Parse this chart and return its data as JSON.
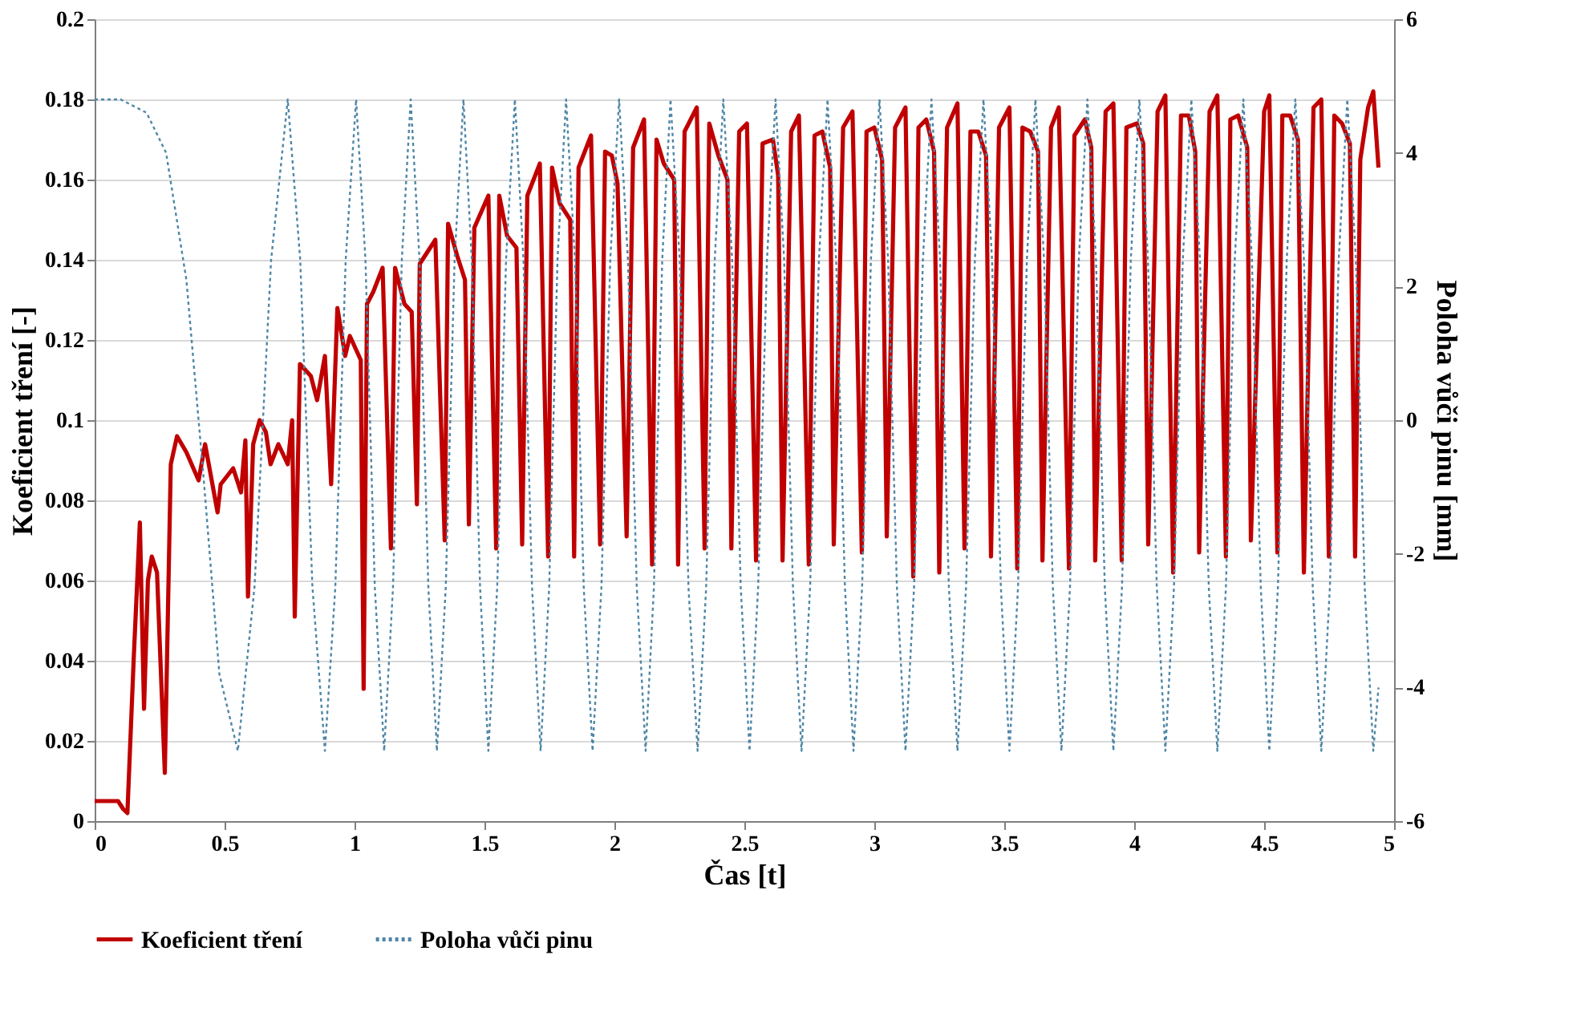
{
  "chart_data": {
    "type": "line",
    "xlabel": "Čas [t]",
    "ylabel": "Koeficient tření [-]",
    "y2label": "Poloha vůči pinu [mm]",
    "xlim": [
      0,
      5
    ],
    "xticks": [
      0,
      0.5,
      1,
      1.5,
      2,
      2.5,
      3,
      3.5,
      4,
      4.5,
      5
    ],
    "ylim": [
      0,
      0.2
    ],
    "yticks": [
      0,
      0.02,
      0.04,
      0.06,
      0.08,
      0.1,
      0.12,
      0.14,
      0.16,
      0.18,
      0.2
    ],
    "y2lim": [
      -6,
      6
    ],
    "y2ticks": [
      -6,
      -4,
      -2,
      0,
      2,
      4,
      6
    ],
    "grid": "y",
    "legend": "bottom",
    "series": [
      {
        "name": "Koeficient tření",
        "color": "#c00000",
        "line_style": "solid",
        "x": [
          0,
          0.05,
          0.09,
          0.11,
          0.126,
          0.15,
          0.174,
          0.19,
          0.205,
          0.22,
          0.24,
          0.27,
          0.293,
          0.317,
          0.353,
          0.4,
          0.425,
          0.473,
          0.485,
          0.533,
          0.563,
          0.58,
          0.59,
          0.61,
          0.635,
          0.659,
          0.677,
          0.707,
          0.743,
          0.76,
          0.77,
          0.79,
          0.832,
          0.856,
          0.886,
          0.91,
          0.934,
          0.964,
          0.982,
          1.024,
          1.035,
          1.048,
          1.072,
          1.108,
          1.14,
          1.156,
          1.192,
          1.22,
          1.24,
          1.251,
          1.311,
          1.347,
          1.36,
          1.395,
          1.425,
          1.44,
          1.461,
          1.515,
          1.545,
          1.557,
          1.587,
          1.623,
          1.645,
          1.665,
          1.713,
          1.745,
          1.76,
          1.79,
          1.83,
          1.845,
          1.862,
          1.91,
          1.945,
          1.964,
          1.99,
          2.012,
          2.047,
          2.072,
          2.114,
          2.145,
          2.162,
          2.19,
          2.23,
          2.245,
          2.27,
          2.317,
          2.347,
          2.365,
          2.4,
          2.435,
          2.45,
          2.48,
          2.51,
          2.545,
          2.57,
          2.61,
          2.63,
          2.647,
          2.68,
          2.71,
          2.748,
          2.77,
          2.8,
          2.83,
          2.844,
          2.88,
          2.916,
          2.952,
          2.97,
          3.0,
          3.03,
          3.048,
          3.08,
          3.12,
          3.15,
          3.17,
          3.2,
          3.23,
          3.25,
          3.28,
          3.32,
          3.347,
          3.37,
          3.4,
          3.43,
          3.449,
          3.48,
          3.52,
          3.55,
          3.57,
          3.6,
          3.63,
          3.647,
          3.68,
          3.71,
          3.749,
          3.77,
          3.81,
          3.835,
          3.85,
          3.89,
          3.92,
          3.952,
          3.97,
          4.01,
          4.035,
          4.054,
          4.09,
          4.12,
          4.15,
          4.18,
          4.21,
          4.235,
          4.25,
          4.29,
          4.32,
          4.353,
          4.37,
          4.4,
          4.435,
          4.449,
          4.5,
          4.52,
          4.551,
          4.57,
          4.6,
          4.63,
          4.653,
          4.69,
          4.72,
          4.749,
          4.77,
          4.8,
          4.83,
          4.85,
          4.87,
          4.9,
          4.92,
          4.94
        ],
        "values": [
          0.005,
          0.005,
          0.005,
          0.003,
          0.002,
          0.04,
          0.0745,
          0.028,
          0.06,
          0.066,
          0.062,
          0.012,
          0.089,
          0.096,
          0.092,
          0.085,
          0.094,
          0.077,
          0.084,
          0.088,
          0.082,
          0.095,
          0.056,
          0.094,
          0.1,
          0.097,
          0.089,
          0.094,
          0.089,
          0.1,
          0.051,
          0.114,
          0.111,
          0.105,
          0.116,
          0.084,
          0.128,
          0.116,
          0.121,
          0.115,
          0.033,
          0.129,
          0.132,
          0.138,
          0.068,
          0.138,
          0.129,
          0.127,
          0.079,
          0.139,
          0.145,
          0.07,
          0.149,
          0.141,
          0.135,
          0.074,
          0.148,
          0.156,
          0.068,
          0.156,
          0.146,
          0.143,
          0.069,
          0.156,
          0.164,
          0.066,
          0.163,
          0.154,
          0.15,
          0.066,
          0.163,
          0.171,
          0.069,
          0.167,
          0.166,
          0.159,
          0.071,
          0.168,
          0.175,
          0.064,
          0.17,
          0.164,
          0.16,
          0.064,
          0.172,
          0.178,
          0.068,
          0.174,
          0.166,
          0.16,
          0.068,
          0.172,
          0.174,
          0.065,
          0.169,
          0.17,
          0.161,
          0.065,
          0.172,
          0.176,
          0.064,
          0.171,
          0.172,
          0.163,
          0.069,
          0.173,
          0.177,
          0.067,
          0.172,
          0.173,
          0.165,
          0.071,
          0.173,
          0.178,
          0.061,
          0.173,
          0.175,
          0.167,
          0.062,
          0.173,
          0.179,
          0.068,
          0.172,
          0.172,
          0.166,
          0.066,
          0.173,
          0.178,
          0.063,
          0.173,
          0.172,
          0.167,
          0.065,
          0.173,
          0.178,
          0.063,
          0.171,
          0.175,
          0.168,
          0.065,
          0.177,
          0.179,
          0.065,
          0.173,
          0.174,
          0.169,
          0.069,
          0.177,
          0.181,
          0.062,
          0.176,
          0.176,
          0.167,
          0.067,
          0.177,
          0.181,
          0.066,
          0.175,
          0.176,
          0.168,
          0.07,
          0.177,
          0.181,
          0.067,
          0.176,
          0.176,
          0.17,
          0.062,
          0.178,
          0.18,
          0.066,
          0.176,
          0.174,
          0.169,
          0.066,
          0.165,
          0.178,
          0.182,
          0.163
        ]
      },
      {
        "name": "Poloha vůči pinu",
        "color": "#4f86a6",
        "line_style": "dotted",
        "axis": "y2",
        "x": [
          0,
          0.1,
          0.2,
          0.275,
          0.353,
          0.42,
          0.48,
          0.551,
          0.615,
          0.679,
          0.743,
          0.791,
          0.838,
          0.886,
          0.926,
          0.966,
          1.006,
          1.042,
          1.078,
          1.114,
          1.148,
          1.182,
          1.216,
          1.25,
          1.284,
          1.317,
          1.351,
          1.385,
          1.419,
          1.451,
          1.483,
          1.515,
          1.549,
          1.583,
          1.617,
          1.65,
          1.683,
          1.716,
          1.749,
          1.781,
          1.814,
          1.848,
          1.882,
          1.916,
          1.95,
          1.984,
          2.018,
          2.052,
          2.086,
          2.12,
          2.152,
          2.184,
          2.216,
          2.251,
          2.285,
          2.32,
          2.353,
          2.386,
          2.419,
          2.453,
          2.486,
          2.52,
          2.553,
          2.587,
          2.62,
          2.653,
          2.687,
          2.72,
          2.753,
          2.787,
          2.82,
          2.853,
          2.887,
          2.92,
          2.953,
          2.987,
          3.02,
          3.053,
          3.087,
          3.12,
          3.153,
          3.187,
          3.22,
          3.253,
          3.287,
          3.32,
          3.353,
          3.387,
          3.42,
          3.453,
          3.487,
          3.52,
          3.553,
          3.587,
          3.62,
          3.653,
          3.687,
          3.72,
          3.753,
          3.787,
          3.82,
          3.853,
          3.887,
          3.92,
          3.953,
          3.987,
          4.02,
          4.053,
          4.087,
          4.12,
          4.153,
          4.187,
          4.22,
          4.253,
          4.287,
          4.32,
          4.353,
          4.387,
          4.42,
          4.453,
          4.487,
          4.52,
          4.553,
          4.587,
          4.62,
          4.653,
          4.687,
          4.72,
          4.753,
          4.787,
          4.82,
          4.853,
          4.887,
          4.92,
          4.94
        ],
        "values": [
          4.8,
          4.8,
          4.6,
          4.0,
          2.1,
          -0.9,
          -3.8,
          -4.95,
          -2.5,
          2.4,
          4.8,
          2.4,
          -2.5,
          -4.95,
          -2.5,
          2.4,
          4.8,
          2.4,
          -2.5,
          -4.95,
          -2.5,
          2.4,
          4.8,
          2.4,
          -2.5,
          -4.95,
          -2.5,
          2.4,
          4.8,
          2.4,
          -2.5,
          -4.95,
          -2.5,
          2.4,
          4.8,
          2.4,
          -2.5,
          -4.95,
          -2.5,
          2.4,
          4.8,
          2.4,
          -2.5,
          -4.95,
          -2.5,
          2.4,
          4.8,
          2.4,
          -2.5,
          -4.95,
          -2.5,
          2.4,
          4.8,
          2.4,
          -2.5,
          -4.95,
          -2.5,
          2.4,
          4.8,
          2.4,
          -2.5,
          -4.95,
          -2.5,
          2.4,
          4.8,
          2.4,
          -2.5,
          -4.95,
          -2.5,
          2.4,
          4.8,
          2.4,
          -2.5,
          -4.95,
          -2.5,
          2.4,
          4.8,
          2.4,
          -2.5,
          -4.95,
          -2.5,
          2.4,
          4.8,
          2.4,
          -2.5,
          -4.95,
          -2.5,
          2.4,
          4.8,
          2.4,
          -2.5,
          -4.95,
          -2.5,
          2.4,
          4.8,
          2.4,
          -2.5,
          -4.95,
          -2.5,
          2.4,
          4.8,
          2.4,
          -2.5,
          -4.95,
          -2.5,
          2.4,
          4.8,
          2.4,
          -2.5,
          -4.95,
          -2.5,
          2.4,
          4.8,
          2.4,
          -2.5,
          -4.95,
          -2.5,
          2.4,
          4.8,
          2.4,
          -2.5,
          -4.95,
          -2.5,
          2.4,
          4.8,
          2.4,
          -2.5,
          -4.95,
          -2.5,
          2.4,
          4.8,
          2.4,
          -2.5,
          -4.95,
          -4.0
        ]
      }
    ]
  }
}
